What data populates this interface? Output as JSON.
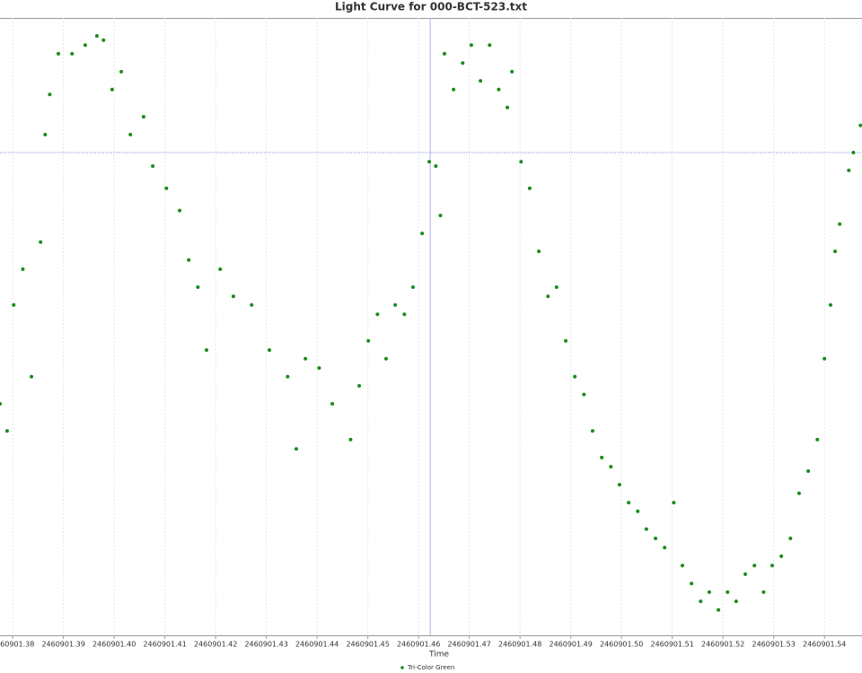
{
  "chart_data": {
    "type": "scatter",
    "title": "Light Curve for 000-BCT-523.txt",
    "xlabel": "Time",
    "series": [
      {
        "name": "Tri-Color Green",
        "color": "#1a8c1a",
        "x": [
          2460901.3775,
          2460901.3789,
          2460901.3802,
          2460901.382,
          2460901.3837,
          2460901.3855,
          2460901.3864,
          2460901.3873,
          2460901.389,
          2460901.3917,
          2460901.3943,
          2460901.3966,
          2460901.3979,
          2460901.3996,
          2460901.4014,
          2460901.4032,
          2460901.4058,
          2460901.4076,
          2460901.4103,
          2460901.4129,
          2460901.4147,
          2460901.4165,
          2460901.4182,
          2460901.4209,
          2460901.4235,
          2460901.4271,
          2460901.4306,
          2460901.4342,
          2460901.4359,
          2460901.4377,
          2460901.4404,
          2460901.443,
          2460901.4466,
          2460901.4483,
          2460901.4501,
          2460901.4519,
          2460901.4536,
          2460901.4554,
          2460901.4572,
          2460901.4589,
          2460901.4607,
          2460901.4621,
          2460901.4634,
          2460901.4643,
          2460901.4651,
          2460901.4669,
          2460901.4687,
          2460901.4704,
          2460901.4722,
          2460901.474,
          2460901.4758,
          2460901.4775,
          2460901.4784,
          2460901.4802,
          2460901.4819,
          2460901.4837,
          2460901.4855,
          2460901.4872,
          2460901.489,
          2460901.4908,
          2460901.4926,
          2460901.4943,
          2460901.4961,
          2460901.4979,
          2460901.4996,
          2460901.5014,
          2460901.5032,
          2460901.5049,
          2460901.5067,
          2460901.5085,
          2460901.5103,
          2460901.512,
          2460901.5138,
          2460901.5156,
          2460901.5173,
          2460901.5191,
          2460901.5209,
          2460901.5226,
          2460901.5244,
          2460901.5262,
          2460901.528,
          2460901.5297,
          2460901.5315,
          2460901.5333,
          2460901.535,
          2460901.5368,
          2460901.5386,
          2460901.54,
          2460901.5412,
          2460901.5421,
          2460901.543,
          2460901.5448,
          2460901.5457,
          2460901.5471
        ],
        "values": [
          37.5,
          33.1,
          53.5,
          59.3,
          41.9,
          63.7,
          81.1,
          87.6,
          94.2,
          94.2,
          95.6,
          97.1,
          96.4,
          88.4,
          91.3,
          81.1,
          84.0,
          76.0,
          72.4,
          68.8,
          60.8,
          56.4,
          46.2,
          59.3,
          54.9,
          53.5,
          46.2,
          41.9,
          30.2,
          44.8,
          43.3,
          37.5,
          31.7,
          40.4,
          47.7,
          52.0,
          44.8,
          53.5,
          52.0,
          56.4,
          65.1,
          76.7,
          76.0,
          68.0,
          94.2,
          88.4,
          92.7,
          95.6,
          89.8,
          95.6,
          88.4,
          85.5,
          91.3,
          76.7,
          72.4,
          62.2,
          54.9,
          56.4,
          47.7,
          41.9,
          39.0,
          33.1,
          28.8,
          27.3,
          24.4,
          21.5,
          20.1,
          17.2,
          15.7,
          14.2,
          21.5,
          11.3,
          8.4,
          5.5,
          7.0,
          4.1,
          7.0,
          5.5,
          9.9,
          11.3,
          7.0,
          11.3,
          12.8,
          15.7,
          23.0,
          26.6,
          31.7,
          44.8,
          53.5,
          62.2,
          66.6,
          75.3,
          78.2,
          82.6
        ]
      }
    ],
    "xlim": [
      2460901.3775,
      2460901.5474
    ],
    "ylim": [
      0,
      100
    ],
    "xticks": [
      {
        "value": 2460901.38,
        "label": "2460901.38"
      },
      {
        "value": 2460901.39,
        "label": "2460901.39"
      },
      {
        "value": 2460901.4,
        "label": "2460901.40"
      },
      {
        "value": 2460901.41,
        "label": "2460901.41"
      },
      {
        "value": 2460901.42,
        "label": "2460901.42"
      },
      {
        "value": 2460901.43,
        "label": "2460901.43"
      },
      {
        "value": 2460901.44,
        "label": "2460901.44"
      },
      {
        "value": 2460901.45,
        "label": "2460901.45"
      },
      {
        "value": 2460901.46,
        "label": "2460901.46"
      },
      {
        "value": 2460901.47,
        "label": "2460901.47"
      },
      {
        "value": 2460901.48,
        "label": "2460901.48"
      },
      {
        "value": 2460901.49,
        "label": "2460901.49"
      },
      {
        "value": 2460901.5,
        "label": "2460901.50"
      },
      {
        "value": 2460901.51,
        "label": "2460901.51"
      },
      {
        "value": 2460901.52,
        "label": "2460901.52"
      },
      {
        "value": 2460901.53,
        "label": "2460901.53"
      },
      {
        "value": 2460901.54,
        "label": "2460901.54"
      }
    ],
    "crosshair": {
      "x": 2460901.4623,
      "y": 78.2
    },
    "grid": true,
    "legend": "bottom"
  }
}
